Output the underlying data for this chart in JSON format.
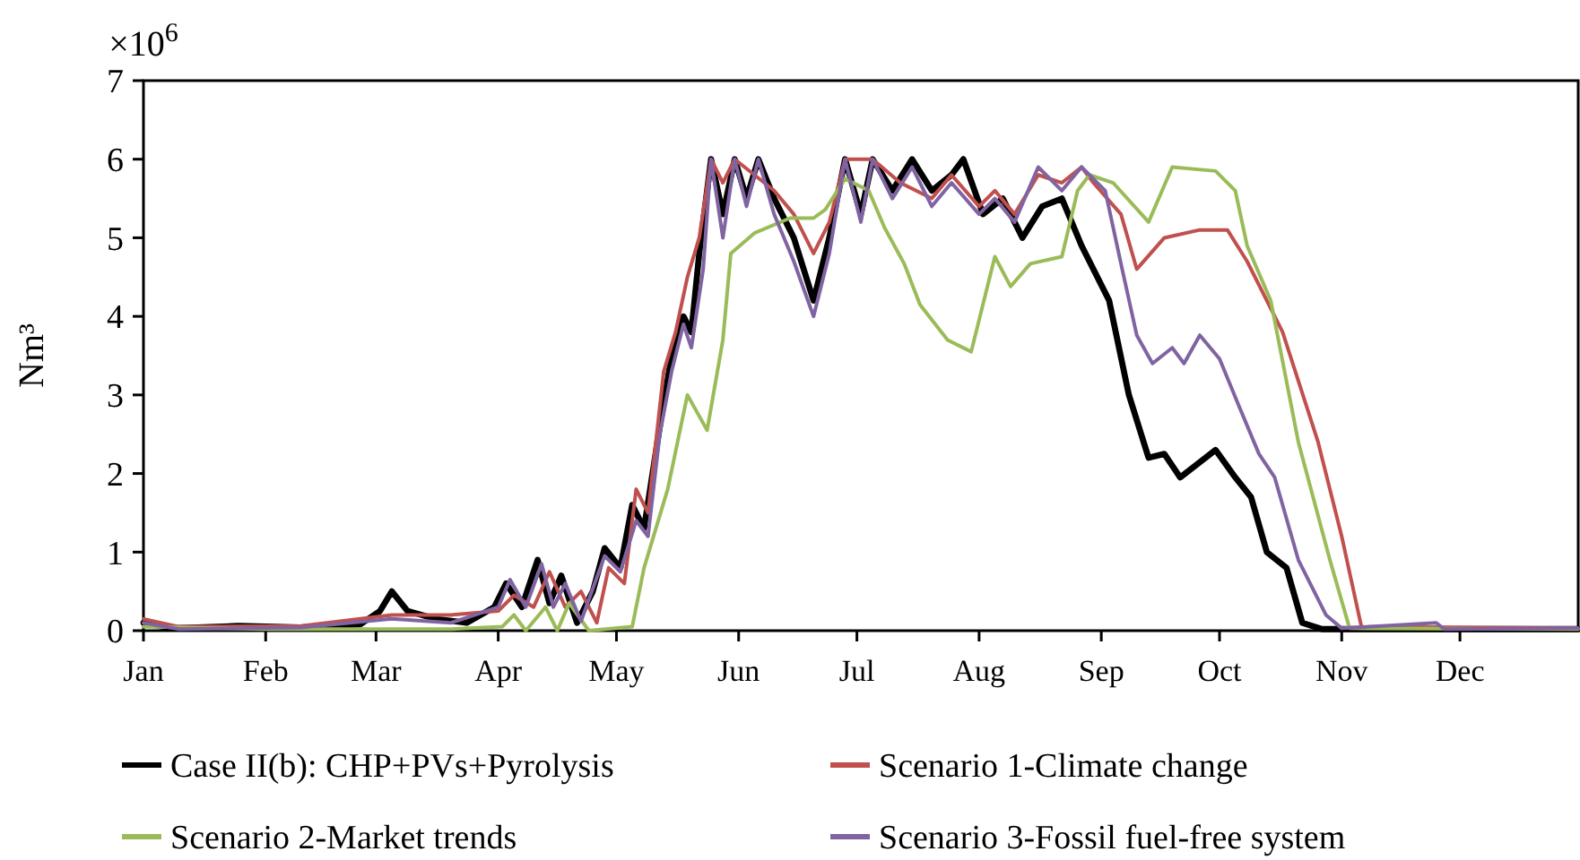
{
  "chart_data": {
    "type": "line",
    "ylabel": "Nm³",
    "annotations": [
      "×10$^{6}$"
    ],
    "xlim": [
      "--01-01",
      "--12-31"
    ],
    "xticks": [
      {
        "value": "--01-01",
        "label": "Jan"
      },
      {
        "value": "--02-01",
        "label": "Feb"
      },
      {
        "value": "--03-01",
        "label": "Mar"
      },
      {
        "value": "--04-01",
        "label": "Apr"
      },
      {
        "value": "--05-01",
        "label": "May"
      },
      {
        "value": "--06-01",
        "label": "Jun"
      },
      {
        "value": "--07-01",
        "label": "Jul"
      },
      {
        "value": "--08-01",
        "label": "Aug"
      },
      {
        "value": "--09-01",
        "label": "Sep"
      },
      {
        "value": "--10-01",
        "label": "Oct"
      },
      {
        "value": "--11-01",
        "label": "Nov"
      },
      {
        "value": "--12-01",
        "label": "Dec"
      }
    ],
    "ylim": [
      0,
      7
    ],
    "yticks": [
      0,
      1,
      2,
      3,
      4,
      5,
      6,
      7
    ],
    "grid": false,
    "legend": "bottom",
    "marker": "none",
    "line_style": "solid",
    "series": [
      {
        "name": "Case II(b): CHP+PVs+Pyrolysis",
        "color": "#000000",
        "x": [
          "--01-01",
          "--01-08",
          "--01-25",
          "--02-10",
          "--02-25",
          "--03-02",
          "--03-05",
          "--03-09",
          "--03-16",
          "--03-24",
          "--03-31",
          "--04-03",
          "--04-07",
          "--04-11",
          "--04-14",
          "--04-17",
          "--04-21",
          "--04-25",
          "--04-28",
          "--05-02",
          "--05-05",
          "--05-08",
          "--05-12",
          "--05-15",
          "--05-18",
          "--05-20",
          "--05-22",
          "--05-25",
          "--05-28",
          "--05-31",
          "--06-03",
          "--06-06",
          "--06-10",
          "--06-15",
          "--06-20",
          "--06-24",
          "--06-28",
          "--07-02",
          "--07-05",
          "--07-10",
          "--07-15",
          "--07-20",
          "--07-25",
          "--07-28",
          "--08-02",
          "--08-07",
          "--08-12",
          "--08-17",
          "--08-22",
          "--08-27",
          "--09-03",
          "--09-08",
          "--09-13",
          "--09-17",
          "--09-21",
          "--09-30",
          "--10-05",
          "--10-09",
          "--10-13",
          "--10-18",
          "--10-22",
          "--10-27",
          "--12-31"
        ],
        "values": [
          0.1,
          0.03,
          0.06,
          0.04,
          0.08,
          0.25,
          0.5,
          0.25,
          0.15,
          0.1,
          0.3,
          0.6,
          0.3,
          0.9,
          0.35,
          0.7,
          0.1,
          0.5,
          1.05,
          0.8,
          1.6,
          1.3,
          2.6,
          3.5,
          4.0,
          3.8,
          4.8,
          6.0,
          5.3,
          6.0,
          5.5,
          6.0,
          5.5,
          5.0,
          4.2,
          5.0,
          6.0,
          5.3,
          6.0,
          5.6,
          6.0,
          5.6,
          5.8,
          6.0,
          5.3,
          5.5,
          5.0,
          5.4,
          5.5,
          4.9,
          4.2,
          3.0,
          2.2,
          2.25,
          1.95,
          2.3,
          1.95,
          1.7,
          1.0,
          0.8,
          0.1,
          0.02,
          0.02
        ]
      },
      {
        "name": "Scenario 1-Climate change",
        "color": "#c0504d",
        "x": [
          "--01-01",
          "--01-10",
          "--02-10",
          "--03-05",
          "--03-20",
          "--04-01",
          "--04-05",
          "--04-10",
          "--04-14",
          "--04-18",
          "--04-22",
          "--04-26",
          "--04-29",
          "--05-03",
          "--05-06",
          "--05-09",
          "--05-13",
          "--05-16",
          "--05-19",
          "--05-22",
          "--05-25",
          "--05-28",
          "--05-31",
          "--06-05",
          "--06-10",
          "--06-15",
          "--06-20",
          "--06-24",
          "--06-28",
          "--07-05",
          "--07-12",
          "--07-20",
          "--07-25",
          "--08-01",
          "--08-05",
          "--08-10",
          "--08-16",
          "--08-22",
          "--08-27",
          "--08-30",
          "--09-06",
          "--09-10",
          "--09-17",
          "--09-26",
          "--10-03",
          "--10-08",
          "--10-17",
          "--10-26",
          "--11-01",
          "--11-06",
          "--12-31"
        ],
        "values": [
          0.15,
          0.05,
          0.06,
          0.2,
          0.2,
          0.25,
          0.45,
          0.3,
          0.75,
          0.3,
          0.5,
          0.1,
          0.8,
          0.6,
          1.8,
          1.5,
          3.3,
          3.8,
          4.5,
          5.0,
          6.0,
          5.7,
          6.0,
          5.8,
          5.6,
          5.3,
          4.8,
          5.2,
          6.0,
          6.0,
          5.7,
          5.5,
          5.8,
          5.4,
          5.6,
          5.3,
          5.8,
          5.7,
          5.9,
          5.7,
          5.3,
          4.6,
          5.0,
          5.1,
          5.1,
          4.7,
          3.8,
          2.4,
          1.2,
          0.05,
          0.03
        ]
      },
      {
        "name": "Scenario 2-Market trends",
        "color": "#9bbb59",
        "x": [
          "--01-01",
          "--02-01",
          "--03-20",
          "--04-02",
          "--04-05",
          "--04-08",
          "--04-13",
          "--04-16",
          "--04-19",
          "--04-24",
          "--05-05",
          "--05-08",
          "--05-14",
          "--05-19",
          "--05-24",
          "--05-28",
          "--05-30",
          "--06-05",
          "--06-14",
          "--06-20",
          "--06-23",
          "--06-28",
          "--07-04",
          "--07-08",
          "--07-13",
          "--07-17",
          "--07-24",
          "--07-30",
          "--08-05",
          "--08-09",
          "--08-14",
          "--08-22",
          "--08-26",
          "--08-29",
          "--09-04",
          "--09-13",
          "--09-19",
          "--09-30",
          "--10-05",
          "--10-08",
          "--10-14",
          "--10-21",
          "--10-29",
          "--11-03",
          "--12-31"
        ],
        "values": [
          0.05,
          0.02,
          0.02,
          0.05,
          0.2,
          0.0,
          0.3,
          0.0,
          0.35,
          0.0,
          0.05,
          0.8,
          1.8,
          3.0,
          2.55,
          3.7,
          4.8,
          5.06,
          5.25,
          5.25,
          5.36,
          5.75,
          5.6,
          5.13,
          4.67,
          4.15,
          3.7,
          3.55,
          4.76,
          4.38,
          4.67,
          4.76,
          5.6,
          5.8,
          5.7,
          5.2,
          5.9,
          5.85,
          5.6,
          4.9,
          4.2,
          2.4,
          0.9,
          0.03,
          0.02
        ]
      },
      {
        "name": "Scenario 3-Fossil fuel-free system",
        "color": "#8064a2",
        "x": [
          "--01-01",
          "--01-10",
          "--02-10",
          "--03-05",
          "--03-20",
          "--04-01",
          "--04-04",
          "--04-08",
          "--04-12",
          "--04-15",
          "--04-18",
          "--04-22",
          "--04-28",
          "--05-02",
          "--05-06",
          "--05-09",
          "--05-12",
          "--05-15",
          "--05-18",
          "--05-20",
          "--05-23",
          "--05-25",
          "--05-28",
          "--05-31",
          "--06-03",
          "--06-06",
          "--06-10",
          "--06-15",
          "--06-20",
          "--06-24",
          "--06-28",
          "--07-02",
          "--07-05",
          "--07-10",
          "--07-15",
          "--07-20",
          "--07-25",
          "--08-01",
          "--08-05",
          "--08-10",
          "--08-16",
          "--08-22",
          "--08-27",
          "--09-02",
          "--09-06",
          "--09-10",
          "--09-14",
          "--09-19",
          "--09-22",
          "--09-26",
          "--10-01",
          "--10-06",
          "--10-11",
          "--10-15",
          "--10-21",
          "--10-28",
          "--11-01",
          "--11-25",
          "--11-27",
          "--12-31"
        ],
        "values": [
          0.1,
          0.02,
          0.04,
          0.15,
          0.1,
          0.3,
          0.65,
          0.3,
          0.85,
          0.3,
          0.6,
          0.12,
          0.95,
          0.75,
          1.4,
          1.2,
          2.5,
          3.3,
          3.9,
          3.6,
          4.6,
          6.0,
          5.0,
          6.0,
          5.4,
          6.0,
          5.3,
          4.7,
          4.0,
          4.8,
          6.0,
          5.2,
          6.0,
          5.5,
          5.9,
          5.4,
          5.7,
          5.3,
          5.5,
          5.2,
          5.9,
          5.6,
          5.9,
          5.6,
          4.67,
          3.76,
          3.4,
          3.6,
          3.4,
          3.76,
          3.46,
          2.85,
          2.25,
          1.95,
          0.9,
          0.2,
          0.03,
          0.1,
          0.02,
          0.03
        ]
      }
    ]
  }
}
